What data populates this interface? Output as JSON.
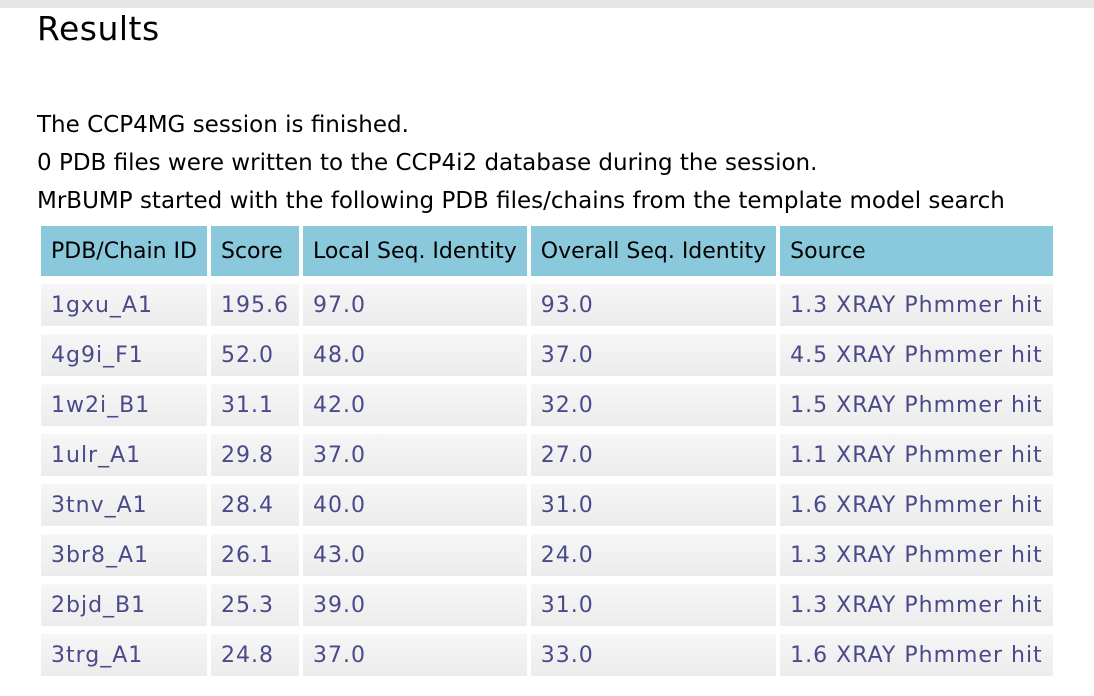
{
  "results": {
    "title": "Results",
    "messages": [
      "The CCP4MG session is finished.",
      "0 PDB files were written to the CCP4i2 database during the session.",
      "MrBUMP started with the following PDB files/chains from the template model search"
    ],
    "table": {
      "headers": [
        "PDB/Chain ID",
        "Score",
        "Local Seq. Identity",
        "Overall Seq. Identity",
        "Source"
      ],
      "rows": [
        [
          "1gxu_A1",
          "195.6",
          "97.0",
          "93.0",
          "1.3 XRAY Phmmer hit"
        ],
        [
          "4g9i_F1",
          "52.0",
          "48.0",
          "37.0",
          "4.5 XRAY Phmmer hit"
        ],
        [
          "1w2i_B1",
          "31.1",
          "42.0",
          "32.0",
          "1.5 XRAY Phmmer hit"
        ],
        [
          "1ulr_A1",
          "29.8",
          "37.0",
          "27.0",
          "1.1 XRAY Phmmer hit"
        ],
        [
          "3tnv_A1",
          "28.4",
          "40.0",
          "31.0",
          "1.6 XRAY Phmmer hit"
        ],
        [
          "3br8_A1",
          "26.1",
          "43.0",
          "24.0",
          "1.3 XRAY Phmmer hit"
        ],
        [
          "2bjd_B1",
          "25.3",
          "39.0",
          "31.0",
          "1.3 XRAY Phmmer hit"
        ],
        [
          "3trg_A1",
          "24.8",
          "37.0",
          "33.0",
          "1.6 XRAY Phmmer hit"
        ]
      ]
    }
  },
  "colors": {
    "header_bg": "#8ac9dc",
    "cell_text": "#4a4a8a",
    "cell_bg": "#eeeeee"
  }
}
